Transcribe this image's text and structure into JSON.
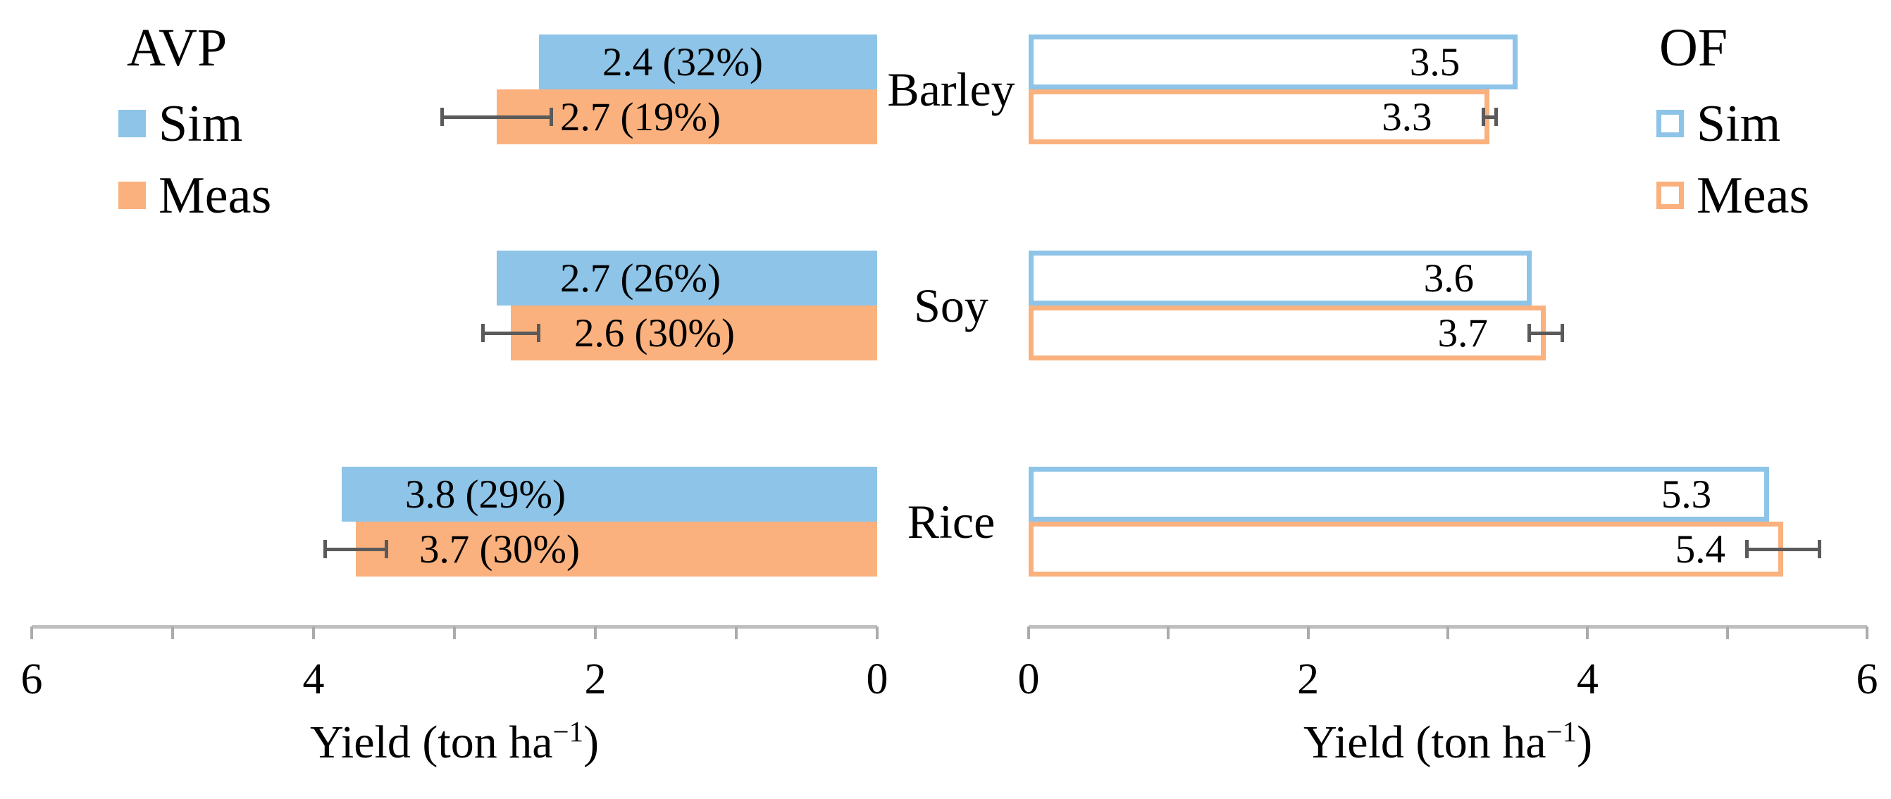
{
  "colors": {
    "sim_blue": "#8DC4E7",
    "meas_orange": "#FAB17E",
    "error_bar": "#5A5A5A",
    "axis_line": "#BFBFBF",
    "tick_mark": "#ABABAB",
    "text": "#000000"
  },
  "categories": [
    "Barley",
    "Soy",
    "Rice"
  ],
  "chart_data": [
    {
      "type": "bar",
      "orientation": "horizontal",
      "panel": "left",
      "title": "AVP",
      "legend_position": "top-left",
      "legend_swatch_style": "filled",
      "categories": [
        "Barley",
        "Soy",
        "Rice"
      ],
      "series": [
        {
          "name": "Sim",
          "style": "filled",
          "color": "#8DC4E7",
          "values": [
            2.4,
            2.7,
            3.8
          ],
          "data_labels": [
            "2.4 (32%)",
            "2.7 (26%)",
            "3.8 (29%)"
          ]
        },
        {
          "name": "Meas",
          "style": "filled",
          "color": "#FAB17E",
          "values": [
            2.7,
            2.6,
            3.7
          ],
          "data_labels": [
            "2.7 (19%)",
            "2.6 (30%)",
            "3.7 (30%)"
          ],
          "error_bars": [
            0.4,
            0.21,
            0.23
          ]
        }
      ],
      "xlabel": "Yield (ton ha⁻¹)",
      "xlabel_parts": {
        "main": "Yield (ton ha",
        "sup": "−1",
        "end": ")"
      },
      "xlim": [
        6,
        0
      ],
      "axis_reversed": true,
      "tick_values": [
        6,
        4,
        2,
        0
      ],
      "tick_labels": [
        "6",
        "4",
        "2",
        "0"
      ],
      "minor_tick_step": 1,
      "grid": false
    },
    {
      "type": "bar",
      "orientation": "horizontal",
      "panel": "right",
      "title": "OF",
      "legend_position": "top-right",
      "legend_swatch_style": "outlined",
      "categories": [
        "Barley",
        "Soy",
        "Rice"
      ],
      "series": [
        {
          "name": "Sim",
          "style": "outlined",
          "color": "#8DC4E7",
          "values": [
            3.5,
            3.6,
            5.3
          ],
          "data_labels": [
            "3.5",
            "3.6",
            "5.3"
          ]
        },
        {
          "name": "Meas",
          "style": "outlined",
          "color": "#FAB17E",
          "values": [
            3.3,
            3.7,
            5.4
          ],
          "data_labels": [
            "3.3",
            "3.7",
            "5.4"
          ],
          "error_bars": [
            0.06,
            0.13,
            0.27
          ]
        }
      ],
      "xlabel": "Yield (ton ha⁻¹)",
      "xlabel_parts": {
        "main": "Yield (ton ha",
        "sup": "−1",
        "end": ")"
      },
      "xlim": [
        0,
        6
      ],
      "axis_reversed": false,
      "tick_values": [
        0,
        2,
        4,
        6
      ],
      "tick_labels": [
        "0",
        "2",
        "4",
        "6"
      ],
      "minor_tick_step": 1,
      "grid": false
    }
  ]
}
